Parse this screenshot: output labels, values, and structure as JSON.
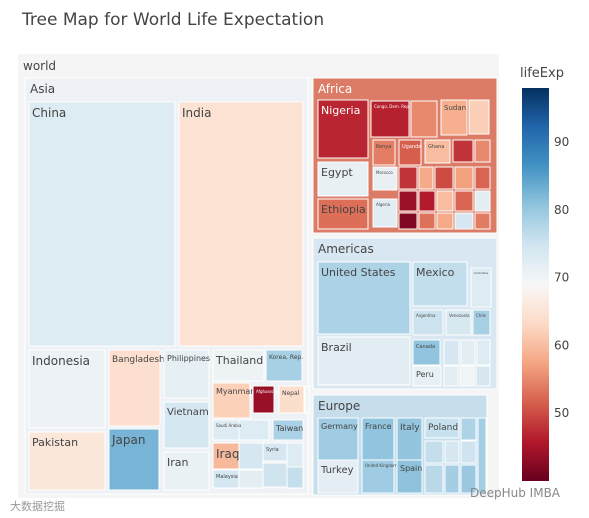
{
  "chart_data": {
    "type": "treemap",
    "title": "Tree Map for World Life Expectation",
    "root": "world",
    "colorbar": {
      "title": "lifeExp",
      "ticks": [
        50,
        60,
        70,
        80,
        90
      ],
      "range": [
        40,
        98
      ]
    },
    "continents": [
      {
        "name": "Asia",
        "countries": [
          {
            "name": "China",
            "lifeExp": 73
          },
          {
            "name": "India",
            "lifeExp": 64.7
          },
          {
            "name": "Indonesia",
            "lifeExp": 70.7
          },
          {
            "name": "Bangladesh",
            "lifeExp": 64.1
          },
          {
            "name": "Philippines",
            "lifeExp": 71.7
          },
          {
            "name": "Thailand",
            "lifeExp": 70.6
          },
          {
            "name": "Korea, Rep.",
            "lifeExp": 78.6
          },
          {
            "name": "Vietnam",
            "lifeExp": 74.2
          },
          {
            "name": "Myanmar",
            "lifeExp": 62.1
          },
          {
            "name": "Afghanistan",
            "lifeExp": 43.8
          },
          {
            "name": "Nepal",
            "lifeExp": 63.8
          },
          {
            "name": "Pakistan",
            "lifeExp": 65.5
          },
          {
            "name": "Japan",
            "lifeExp": 82.6
          },
          {
            "name": "Iran",
            "lifeExp": 71
          },
          {
            "name": "Saudi Arabia",
            "lifeExp": 72.8
          },
          {
            "name": "Taiwan",
            "lifeExp": 78.4
          },
          {
            "name": "Iraq",
            "lifeExp": 59.5
          },
          {
            "name": "Syria",
            "lifeExp": 74.1
          },
          {
            "name": "Malaysia",
            "lifeExp": 74.2
          }
        ]
      },
      {
        "name": "Africa",
        "countries": [
          {
            "name": "Nigeria",
            "lifeExp": 46.9
          },
          {
            "name": "Congo, Dem. Rep.",
            "lifeExp": 46.5
          },
          {
            "name": "Sudan",
            "lifeExp": 58.6
          },
          {
            "name": "Egypt",
            "lifeExp": 71.3
          },
          {
            "name": "Ethiopia",
            "lifeExp": 52.9
          },
          {
            "name": "Kenya",
            "lifeExp": 54.1
          },
          {
            "name": "Uganda",
            "lifeExp": 51.5
          },
          {
            "name": "Ghana",
            "lifeExp": 60
          },
          {
            "name": "Morocco",
            "lifeExp": 71.2
          },
          {
            "name": "Algeria",
            "lifeExp": 72.3
          }
        ]
      },
      {
        "name": "Americas",
        "countries": [
          {
            "name": "United States",
            "lifeExp": 78.2
          },
          {
            "name": "Mexico",
            "lifeExp": 76.2
          },
          {
            "name": "Brazil",
            "lifeExp": 72.4
          },
          {
            "name": "Argentina",
            "lifeExp": 75.3
          },
          {
            "name": "Venezuela",
            "lifeExp": 73.7
          },
          {
            "name": "Chile",
            "lifeExp": 78.6
          },
          {
            "name": "Canada",
            "lifeExp": 80.7
          },
          {
            "name": "Peru",
            "lifeExp": 71.4
          },
          {
            "name": "Colombia",
            "lifeExp": 72.9
          }
        ]
      },
      {
        "name": "Europe",
        "countries": [
          {
            "name": "Germany",
            "lifeExp": 79.4
          },
          {
            "name": "France",
            "lifeExp": 80.7
          },
          {
            "name": "Italy",
            "lifeExp": 80.5
          },
          {
            "name": "Poland",
            "lifeExp": 75.6
          },
          {
            "name": "Turkey",
            "lifeExp": 71.8
          },
          {
            "name": "United Kingdom",
            "lifeExp": 79.4
          },
          {
            "name": "Spain",
            "lifeExp": 80.9
          }
        ]
      }
    ]
  },
  "watermarks": [
    "大数据挖掘",
    "DeepHub IMBA"
  ]
}
